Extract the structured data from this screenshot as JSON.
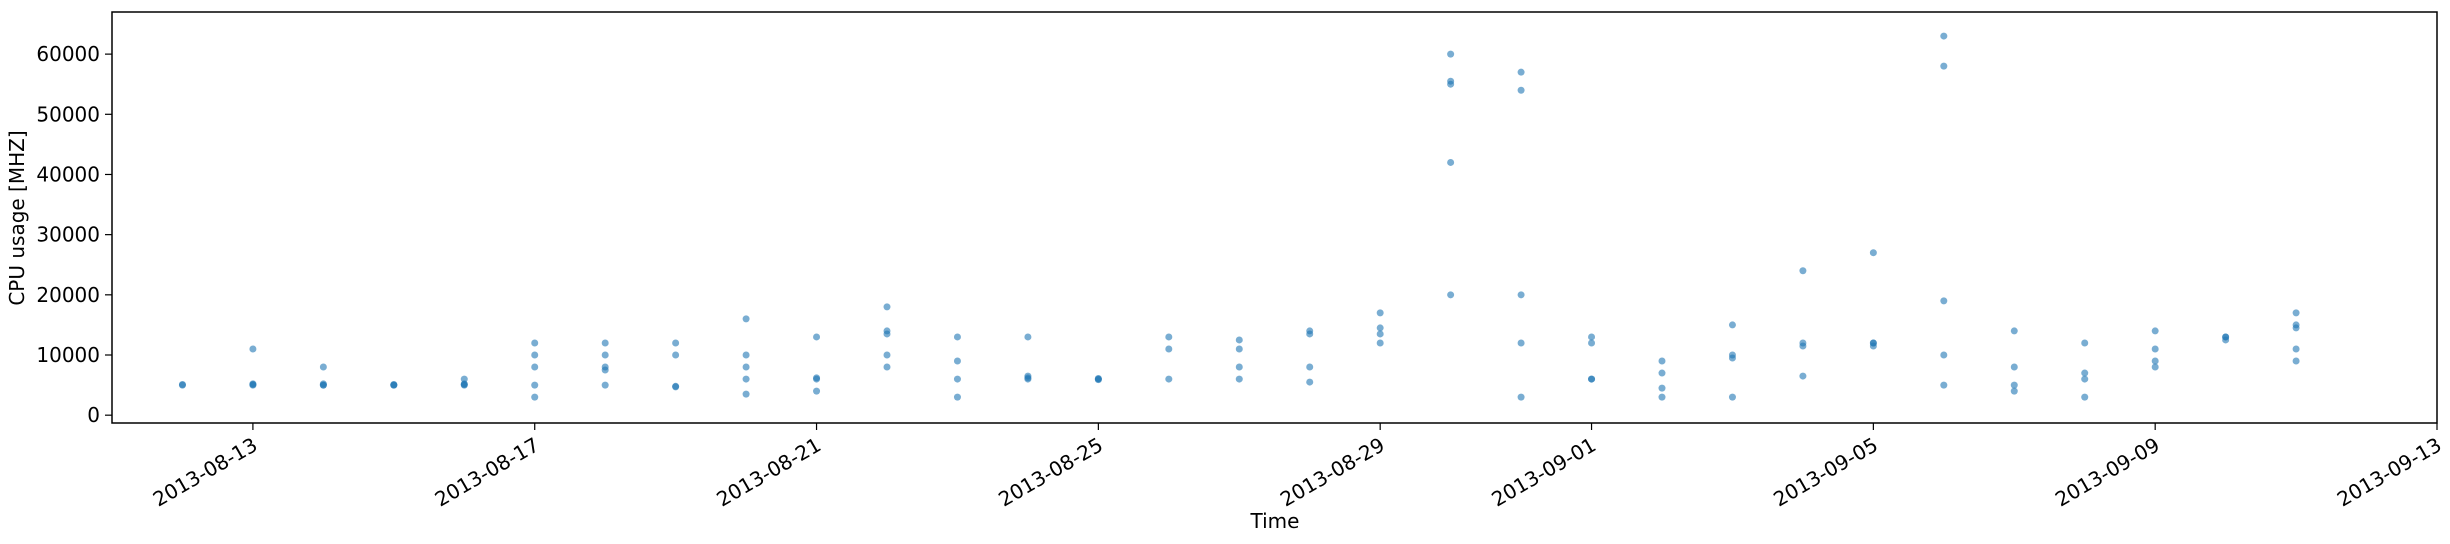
{
  "chart_data": {
    "type": "scatter",
    "x_label": "Time",
    "y_label": "CPU usage [MHZ]",
    "color": "#1f77b4",
    "x": [
      "2013-08-12",
      "2013-08-12",
      "2013-08-13",
      "2013-08-13",
      "2013-08-13",
      "2013-08-13",
      "2013-08-14",
      "2013-08-14",
      "2013-08-14",
      "2013-08-14",
      "2013-08-15",
      "2013-08-15",
      "2013-08-15",
      "2013-08-16",
      "2013-08-16",
      "2013-08-16",
      "2013-08-16",
      "2013-08-17",
      "2013-08-17",
      "2013-08-17",
      "2013-08-17",
      "2013-08-17",
      "2013-08-18",
      "2013-08-18",
      "2013-08-18",
      "2013-08-18",
      "2013-08-18",
      "2013-08-19",
      "2013-08-19",
      "2013-08-19",
      "2013-08-19",
      "2013-08-20",
      "2013-08-20",
      "2013-08-20",
      "2013-08-20",
      "2013-08-20",
      "2013-08-21",
      "2013-08-21",
      "2013-08-21",
      "2013-08-21",
      "2013-08-22",
      "2013-08-22",
      "2013-08-22",
      "2013-08-22",
      "2013-08-22",
      "2013-08-23",
      "2013-08-23",
      "2013-08-23",
      "2013-08-23",
      "2013-08-24",
      "2013-08-24",
      "2013-08-24",
      "2013-08-24",
      "2013-08-25",
      "2013-08-25",
      "2013-08-25",
      "2013-08-26",
      "2013-08-26",
      "2013-08-26",
      "2013-08-27",
      "2013-08-27",
      "2013-08-27",
      "2013-08-27",
      "2013-08-28",
      "2013-08-28",
      "2013-08-28",
      "2013-08-28",
      "2013-08-29",
      "2013-08-29",
      "2013-08-29",
      "2013-08-29",
      "2013-08-30",
      "2013-08-30",
      "2013-08-30",
      "2013-08-30",
      "2013-08-30",
      "2013-08-31",
      "2013-08-31",
      "2013-08-31",
      "2013-08-31",
      "2013-08-31",
      "2013-09-01",
      "2013-09-01",
      "2013-09-01",
      "2013-09-01",
      "2013-09-02",
      "2013-09-02",
      "2013-09-02",
      "2013-09-02",
      "2013-09-03",
      "2013-09-03",
      "2013-09-03",
      "2013-09-03",
      "2013-09-04",
      "2013-09-04",
      "2013-09-04",
      "2013-09-04",
      "2013-09-05",
      "2013-09-05",
      "2013-09-05",
      "2013-09-05",
      "2013-09-06",
      "2013-09-06",
      "2013-09-06",
      "2013-09-06",
      "2013-09-06",
      "2013-09-07",
      "2013-09-07",
      "2013-09-07",
      "2013-09-07",
      "2013-09-08",
      "2013-09-08",
      "2013-09-08",
      "2013-09-08",
      "2013-09-09",
      "2013-09-09",
      "2013-09-09",
      "2013-09-09",
      "2013-09-10",
      "2013-09-10",
      "2013-09-10",
      "2013-09-11",
      "2013-09-11",
      "2013-09-11",
      "2013-09-11",
      "2013-09-11"
    ],
    "values": [
      5000,
      5100,
      5000,
      5100,
      5200,
      11000,
      5000,
      5200,
      8000,
      5000,
      5000,
      5100,
      5000,
      5000,
      5100,
      5200,
      6000,
      12000,
      10000,
      3000,
      8000,
      5000,
      8000,
      7500,
      5000,
      12000,
      10000,
      4700,
      4800,
      10000,
      12000,
      3500,
      10000,
      16000,
      6000,
      8000,
      6000,
      6200,
      13000,
      4000,
      13500,
      14000,
      10000,
      18000,
      8000,
      13000,
      3000,
      6000,
      9000,
      6200,
      6000,
      13000,
      6500,
      6000,
      5900,
      6100,
      6000,
      11000,
      13000,
      11000,
      12500,
      8000,
      6000,
      14000,
      13500,
      8000,
      5500,
      13500,
      12000,
      14500,
      17000,
      60000,
      55000,
      55500,
      42000,
      20000,
      20000,
      12000,
      3000,
      57000,
      54000,
      13000,
      6000,
      12000,
      6000,
      9000,
      7000,
      4500,
      3000,
      3000,
      10000,
      9500,
      15000,
      12000,
      11500,
      6500,
      24000,
      12000,
      11500,
      27000,
      12000,
      58000,
      63000,
      19000,
      5000,
      10000,
      5000,
      14000,
      8000,
      4000,
      6000,
      3000,
      7000,
      12000,
      11000,
      14000,
      8000,
      9000,
      12500,
      13000,
      13000,
      17000,
      9000,
      11000,
      14500,
      15000
    ],
    "xlim": [
      "2013-08-11",
      "2013-09-13"
    ],
    "xticks": [
      "2013-08-13",
      "2013-08-17",
      "2013-08-21",
      "2013-08-25",
      "2013-08-29",
      "2013-09-01",
      "2013-09-05",
      "2013-09-09",
      "2013-09-13"
    ],
    "ylim": [
      -1300,
      67000
    ],
    "yticks": [
      0,
      10000,
      20000,
      30000,
      40000,
      50000,
      60000
    ]
  }
}
